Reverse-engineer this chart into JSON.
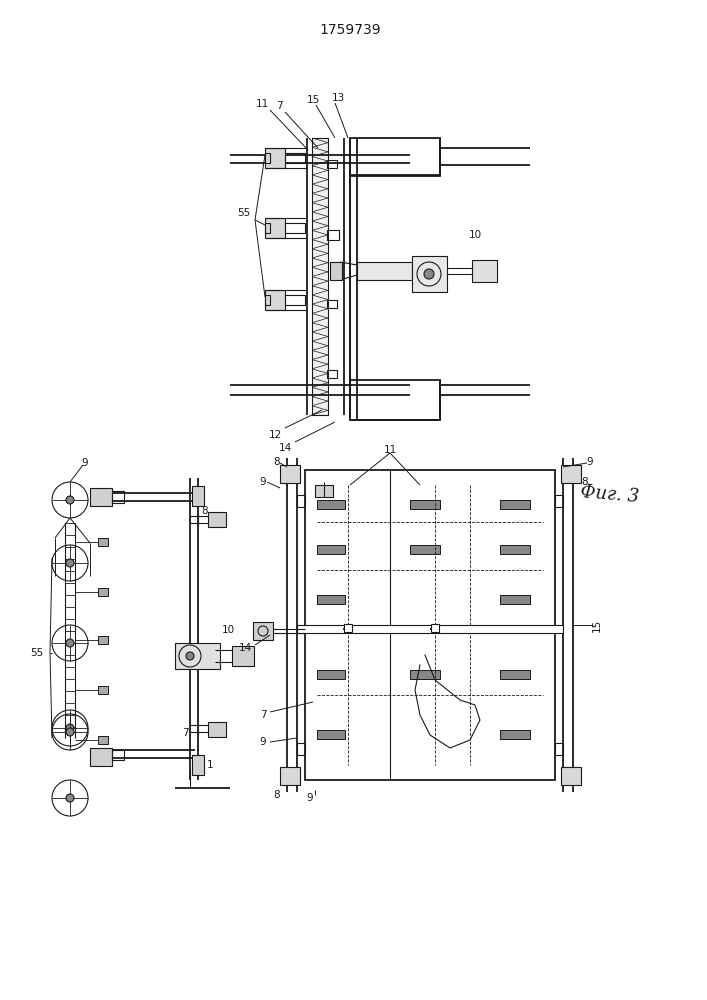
{
  "title": "1759739",
  "fig_label": "Фиг. 3",
  "bg_color": "#ffffff",
  "line_color": "#1a1a1a",
  "lw": 0.8,
  "lw2": 1.3,
  "fs": 7.5,
  "fs_title": 10
}
